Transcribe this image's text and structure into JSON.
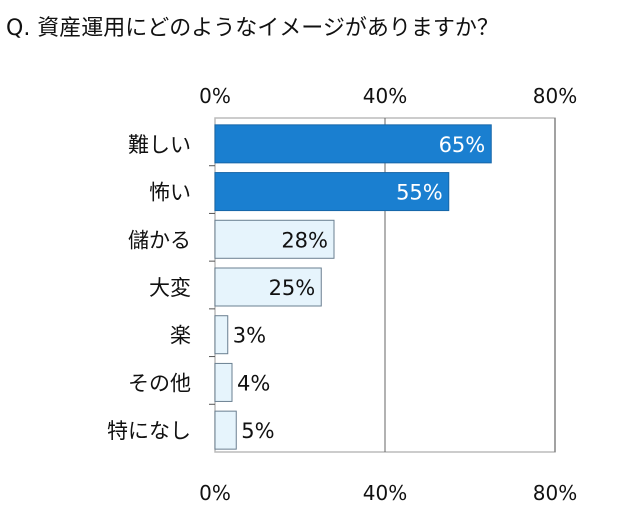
{
  "chart_data": {
    "type": "bar",
    "orientation": "horizontal",
    "title": "Q. 資産運用にどのようなイメージがありますか？",
    "categories": [
      "難しい",
      "怖い",
      "儲かる",
      "大変",
      "楽",
      "その他",
      "特になし"
    ],
    "values": [
      65,
      55,
      28,
      25,
      3,
      4,
      5
    ],
    "data_labels": [
      "65%",
      "55%",
      "28%",
      "25%",
      "3%",
      "4%",
      "5%"
    ],
    "xlim": [
      0,
      80
    ],
    "xticks": [
      0,
      40,
      80
    ],
    "xtick_labels": [
      "0%",
      "40%",
      "80%"
    ],
    "grid": true,
    "colors": {
      "highlight": "#1a7fd0",
      "normal": "#e6f4fc",
      "normal_border": "#6a7f90",
      "highlight_label": "#ffffff",
      "normal_label": "#111111"
    },
    "highlight_count": 2
  }
}
